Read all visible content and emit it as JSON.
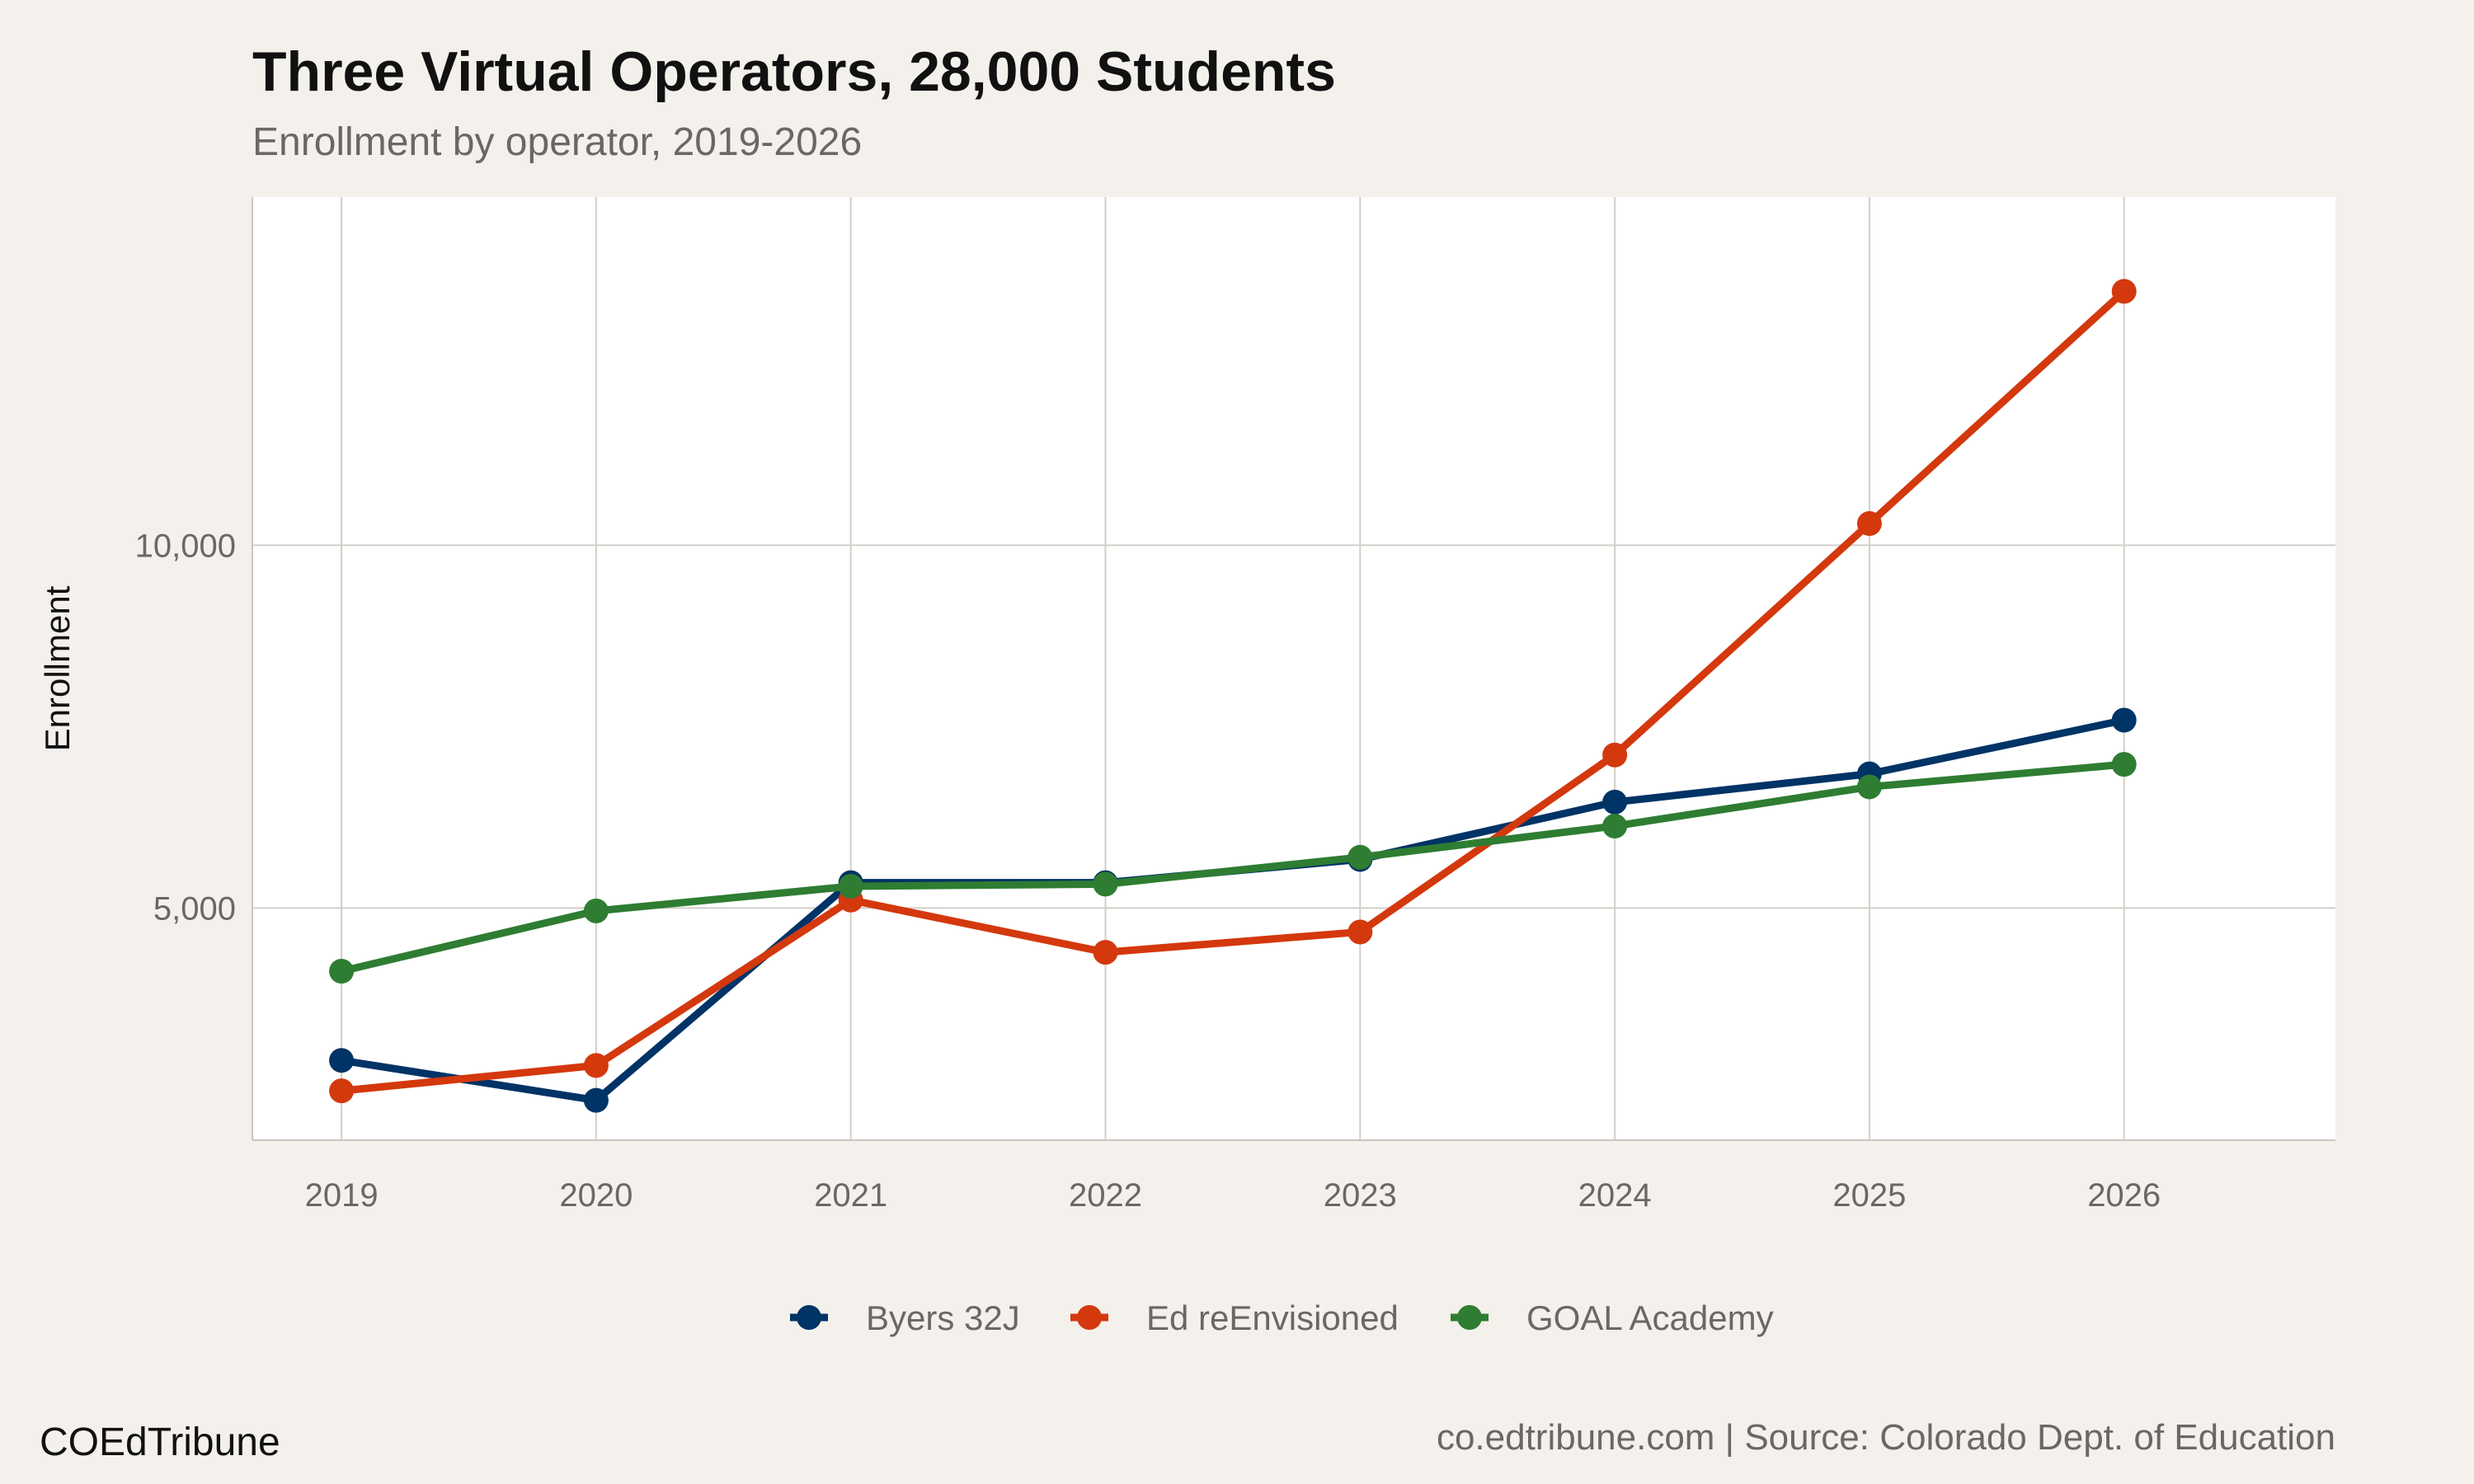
{
  "chart_data": {
    "type": "line",
    "title": "Three Virtual Operators, 28,000 Students",
    "subtitle": "Enrollment by operator, 2019-2026",
    "xlabel": "",
    "ylabel": "Enrollment",
    "x": [
      2019,
      2020,
      2021,
      2022,
      2023,
      2024,
      2025,
      2026
    ],
    "x_tick_labels": [
      "2019",
      "2020",
      "2021",
      "2022",
      "2023",
      "2024",
      "2025",
      "2026"
    ],
    "y_ticks": [
      5000,
      10000
    ],
    "y_tick_labels": [
      "5,000",
      "10,000"
    ],
    "xlim": [
      2018.65,
      2026.83
    ],
    "ylim": [
      1800,
      14800
    ],
    "grid": true,
    "legend_position": "bottom",
    "series": [
      {
        "name": "Byers 32J",
        "color": "#003366",
        "values": [
          2900,
          2350,
          5350,
          5350,
          5670,
          6460,
          6850,
          7590
        ]
      },
      {
        "name": "Ed reEnvisioned",
        "color": "#d4380d",
        "values": [
          2480,
          2830,
          5110,
          4390,
          4670,
          7110,
          10300,
          13500
        ]
      },
      {
        "name": "GOAL Academy",
        "color": "#2e7d32",
        "values": [
          4130,
          4960,
          5300,
          5330,
          5700,
          6130,
          6670,
          6980
        ]
      }
    ]
  },
  "footer": {
    "brand": "COEdTribune",
    "source": "co.edtribune.com | Source: Colorado Dept. of Education"
  }
}
